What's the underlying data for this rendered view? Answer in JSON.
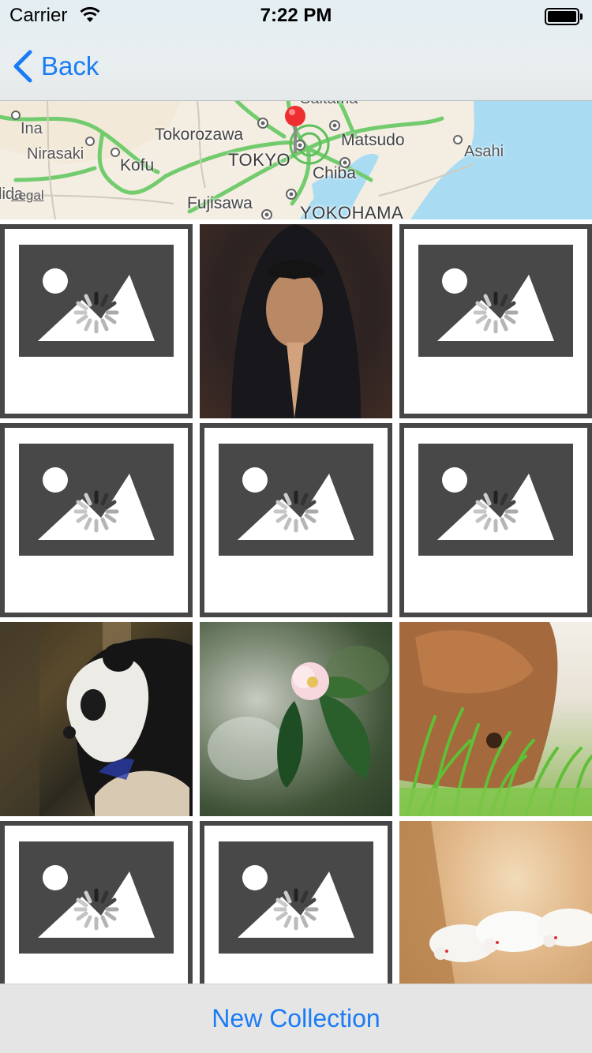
{
  "status_bar": {
    "carrier": "Carrier",
    "time": "7:22 PM",
    "icons": [
      "wifi-icon",
      "battery-icon"
    ]
  },
  "nav": {
    "back_label": "Back",
    "back_icon": "chevron-left-icon",
    "accent_color": "#1a7cf5"
  },
  "map": {
    "labels": [
      "Saitama",
      "Ina",
      "Nirasaki",
      "Tokorozawa",
      "Kofu",
      "TOKYO",
      "Matsudo",
      "Chiba",
      "Asahi",
      "Fujisawa",
      "YOKOHAMA",
      "lida"
    ],
    "legal": "Legal",
    "pin_icon": "map-pin-icon"
  },
  "grid": {
    "cells": [
      {
        "kind": "placeholder",
        "icon": "image-placeholder-icon",
        "loading": true
      },
      {
        "kind": "photo",
        "subject": "person-praying"
      },
      {
        "kind": "placeholder",
        "icon": "image-placeholder-icon",
        "loading": true
      },
      {
        "kind": "placeholder",
        "icon": "image-placeholder-icon",
        "loading": true
      },
      {
        "kind": "placeholder",
        "icon": "image-placeholder-icon",
        "loading": true
      },
      {
        "kind": "placeholder",
        "icon": "image-placeholder-icon",
        "loading": true
      },
      {
        "kind": "photo",
        "subject": "panda"
      },
      {
        "kind": "photo",
        "subject": "camellia-flower"
      },
      {
        "kind": "photo",
        "subject": "dog-in-grass"
      },
      {
        "kind": "placeholder",
        "icon": "image-placeholder-icon",
        "loading": true
      },
      {
        "kind": "placeholder",
        "icon": "image-placeholder-icon",
        "loading": true
      },
      {
        "kind": "photo",
        "subject": "white-mice"
      }
    ]
  },
  "bottom": {
    "new_collection_label": "New Collection"
  }
}
